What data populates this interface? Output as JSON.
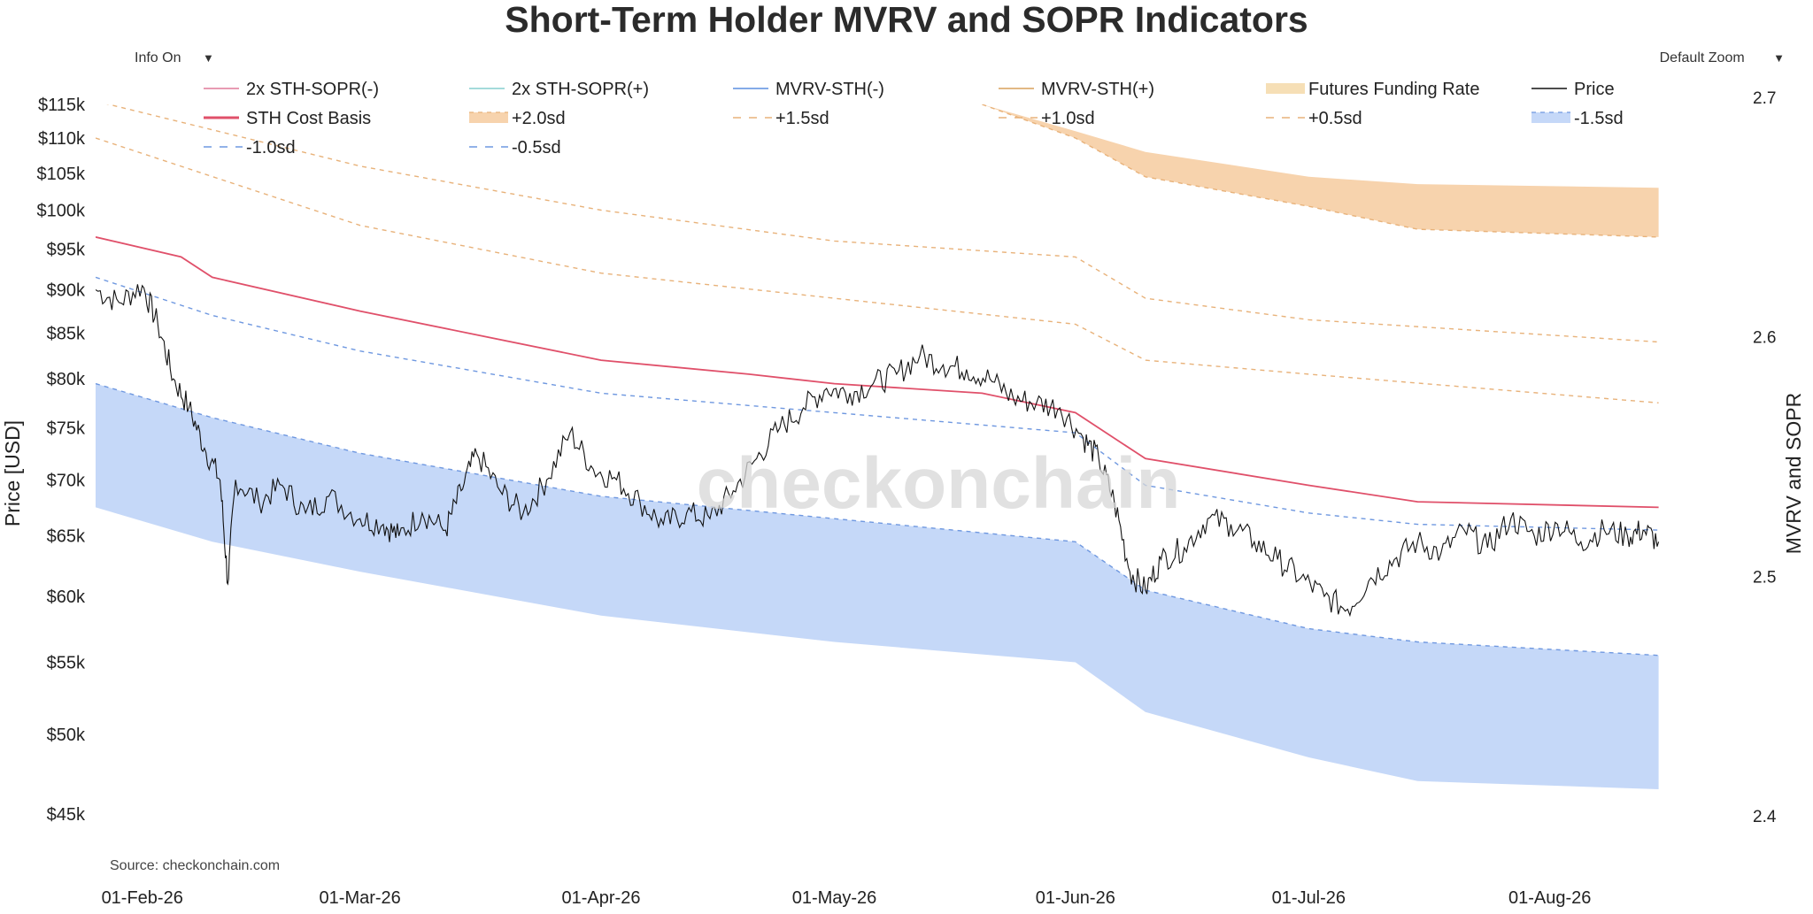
{
  "header": {
    "info_toggle": "Info On",
    "info_caret": "▼",
    "zoom_select": "Default Zoom",
    "zoom_caret": "▼"
  },
  "colors": {
    "price": "#111111",
    "cost_basis": "#e0506a",
    "upper_band_fill": "#f7d3ad",
    "lower_band_fill": "#c5d8f8",
    "upper_dash": "#e8b27a",
    "lower_dash": "#6f98e0",
    "sopr_neg": "#e07a9a",
    "sopr_pos": "#86cfcf",
    "mvrv_neg": "#5b8fe0",
    "mvrv_pos": "#d9a05b",
    "funding": "#f6dfb6"
  },
  "chart_data": {
    "type": "line",
    "title": "Short-Term Holder MVRV and SOPR Indicators",
    "source": "Source: checkonchain.com",
    "watermark": "checkonchain",
    "ylabel": "Price [USD]",
    "y2label": "MVRV and SOPR",
    "yscale": "log",
    "ylim": [
      45000,
      115000
    ],
    "y2lim": [
      2.4,
      2.7
    ],
    "xlim": [
      "2026-01-26",
      "2026-08-18"
    ],
    "yticks": [
      {
        "v": 45000,
        "label": "$45k"
      },
      {
        "v": 50000,
        "label": "$50k"
      },
      {
        "v": 55000,
        "label": "$55k"
      },
      {
        "v": 60000,
        "label": "$60k"
      },
      {
        "v": 65000,
        "label": "$65k"
      },
      {
        "v": 70000,
        "label": "$70k"
      },
      {
        "v": 75000,
        "label": "$75k"
      },
      {
        "v": 80000,
        "label": "$80k"
      },
      {
        "v": 85000,
        "label": "$85k"
      },
      {
        "v": 90000,
        "label": "$90k"
      },
      {
        "v": 95000,
        "label": "$95k"
      },
      {
        "v": 100000,
        "label": "$100k"
      },
      {
        "v": 105000,
        "label": "$105k"
      },
      {
        "v": 110000,
        "label": "$110k"
      },
      {
        "v": 115000,
        "label": "$115k"
      }
    ],
    "y2ticks": [
      {
        "v": 2.4,
        "label": "2.4"
      },
      {
        "v": 2.5,
        "label": "2.5"
      },
      {
        "v": 2.6,
        "label": "2.6"
      },
      {
        "v": 2.7,
        "label": "2.7"
      }
    ],
    "xticks": [
      {
        "v": "2026-02-01",
        "label": "01-Feb-26"
      },
      {
        "v": "2026-03-01",
        "label": "01-Mar-26"
      },
      {
        "v": "2026-04-01",
        "label": "01-Apr-26"
      },
      {
        "v": "2026-05-01",
        "label": "01-May-26"
      },
      {
        "v": "2026-06-01",
        "label": "01-Jun-26"
      },
      {
        "v": "2026-07-01",
        "label": "01-Jul-26"
      },
      {
        "v": "2026-08-01",
        "label": "01-Aug-26"
      }
    ],
    "legend": [
      {
        "label": "2x STH-SOPR(-)",
        "style": "line",
        "color": "#e07a9a"
      },
      {
        "label": "2x STH-SOPR(+)",
        "style": "line",
        "color": "#86cfcf"
      },
      {
        "label": "MVRV-STH(-)",
        "style": "line",
        "color": "#5b8fe0"
      },
      {
        "label": "MVRV-STH(+)",
        "style": "line",
        "color": "#d9a05b"
      },
      {
        "label": "Futures Funding Rate",
        "style": "fill",
        "color": "#f6dfb6"
      },
      {
        "label": "Price",
        "style": "line",
        "color": "#111111"
      },
      {
        "label": "STH Cost Basis",
        "style": "thick",
        "color": "#e0506a"
      },
      {
        "label": "+2.0sd",
        "style": "fill-dash",
        "color": "#f7d3ad"
      },
      {
        "label": "+1.5sd",
        "style": "dash",
        "color": "#e8b27a"
      },
      {
        "label": "+1.0sd",
        "style": "dash",
        "color": "#e8b27a"
      },
      {
        "label": "+0.5sd",
        "style": "dash",
        "color": "#e8b27a"
      },
      {
        "label": "-1.5sd",
        "style": "fill-dash",
        "color": "#c5d8f8"
      },
      {
        "label": "-1.0sd",
        "style": "dash",
        "color": "#6f98e0"
      },
      {
        "label": "-0.5sd",
        "style": "dash",
        "color": "#6f98e0"
      }
    ],
    "series": {
      "price": {
        "name": "Price",
        "points": [
          [
            "2026-01-26",
            90000
          ],
          [
            "2026-01-29",
            88500
          ],
          [
            "2026-02-01",
            90500
          ],
          [
            "2026-02-03",
            86000
          ],
          [
            "2026-02-05",
            80000
          ],
          [
            "2026-02-07",
            77000
          ],
          [
            "2026-02-09",
            73000
          ],
          [
            "2026-02-11",
            70000
          ],
          [
            "2026-02-12",
            61000
          ],
          [
            "2026-02-13",
            70000
          ],
          [
            "2026-02-16",
            68000
          ],
          [
            "2026-02-19",
            69500
          ],
          [
            "2026-02-22",
            67000
          ],
          [
            "2026-02-25",
            68500
          ],
          [
            "2026-03-01",
            66500
          ],
          [
            "2026-03-04",
            66000
          ],
          [
            "2026-03-06",
            65000
          ],
          [
            "2026-03-09",
            67000
          ],
          [
            "2026-03-12",
            65500
          ],
          [
            "2026-03-14",
            69000
          ],
          [
            "2026-03-16",
            72500
          ],
          [
            "2026-03-19",
            69000
          ],
          [
            "2026-03-22",
            67000
          ],
          [
            "2026-03-25",
            70000
          ],
          [
            "2026-03-28",
            74500
          ],
          [
            "2026-03-31",
            71000
          ],
          [
            "2026-04-03",
            70000
          ],
          [
            "2026-04-06",
            68000
          ],
          [
            "2026-04-09",
            66000
          ],
          [
            "2026-04-12",
            67000
          ],
          [
            "2026-04-15",
            66500
          ],
          [
            "2026-04-18",
            69000
          ],
          [
            "2026-04-21",
            72000
          ],
          [
            "2026-04-24",
            75000
          ],
          [
            "2026-04-27",
            77000
          ],
          [
            "2026-04-30",
            79000
          ],
          [
            "2026-05-03",
            78500
          ],
          [
            "2026-05-06",
            79500
          ],
          [
            "2026-05-09",
            80500
          ],
          [
            "2026-05-12",
            82500
          ],
          [
            "2026-05-15",
            81500
          ],
          [
            "2026-05-18",
            81000
          ],
          [
            "2026-05-21",
            80000
          ],
          [
            "2026-05-24",
            78000
          ],
          [
            "2026-05-27",
            77500
          ],
          [
            "2026-05-30",
            77000
          ],
          [
            "2026-06-02",
            74000
          ],
          [
            "2026-06-04",
            72000
          ],
          [
            "2026-06-06",
            68000
          ],
          [
            "2026-06-08",
            62000
          ],
          [
            "2026-06-10",
            60500
          ],
          [
            "2026-06-12",
            63000
          ],
          [
            "2026-06-15",
            64000
          ],
          [
            "2026-06-18",
            66500
          ],
          [
            "2026-06-21",
            66000
          ],
          [
            "2026-06-24",
            64500
          ],
          [
            "2026-06-27",
            63000
          ],
          [
            "2026-06-30",
            61500
          ],
          [
            "2026-07-03",
            60000
          ],
          [
            "2026-07-06",
            59000
          ],
          [
            "2026-07-09",
            61500
          ],
          [
            "2026-07-12",
            63000
          ],
          [
            "2026-07-15",
            64500
          ],
          [
            "2026-07-18",
            63500
          ],
          [
            "2026-07-21",
            65500
          ],
          [
            "2026-07-24",
            64000
          ],
          [
            "2026-07-27",
            66500
          ],
          [
            "2026-07-30",
            65000
          ],
          [
            "2026-08-02",
            66000
          ],
          [
            "2026-08-05",
            64500
          ],
          [
            "2026-08-08",
            65500
          ],
          [
            "2026-08-11",
            65000
          ],
          [
            "2026-08-13",
            65500
          ],
          [
            "2026-08-15",
            64500
          ]
        ]
      },
      "sth_cost_basis": {
        "name": "STH Cost Basis",
        "points": [
          [
            "2026-01-26",
            96500
          ],
          [
            "2026-02-06",
            94000
          ],
          [
            "2026-02-10",
            91500
          ],
          [
            "2026-03-01",
            87500
          ],
          [
            "2026-04-01",
            82000
          ],
          [
            "2026-04-20",
            80500
          ],
          [
            "2026-05-01",
            79500
          ],
          [
            "2026-05-20",
            78500
          ],
          [
            "2026-06-01",
            76500
          ],
          [
            "2026-06-10",
            72000
          ],
          [
            "2026-07-01",
            69500
          ],
          [
            "2026-07-15",
            68000
          ],
          [
            "2026-08-15",
            67500
          ]
        ]
      },
      "plus_2_0sd": {
        "name": "+2.0sd",
        "points": [
          [
            "2026-05-20",
            115000
          ],
          [
            "2026-06-01",
            111000
          ],
          [
            "2026-06-10",
            108000
          ],
          [
            "2026-07-01",
            104500
          ],
          [
            "2026-07-15",
            103500
          ],
          [
            "2026-08-15",
            103000
          ]
        ]
      },
      "plus_1_5sd": {
        "name": "+1.5sd",
        "points": [
          [
            "2026-05-20",
            115000
          ],
          [
            "2026-06-01",
            110000
          ],
          [
            "2026-06-10",
            104500
          ],
          [
            "2026-07-01",
            100500
          ],
          [
            "2026-07-15",
            97500
          ],
          [
            "2026-08-15",
            96500
          ]
        ]
      },
      "plus_1_0sd": {
        "name": "+1.0sd",
        "points": [
          [
            "2026-01-26",
            115500
          ],
          [
            "2026-03-01",
            106000
          ],
          [
            "2026-04-01",
            100000
          ],
          [
            "2026-05-01",
            96000
          ],
          [
            "2026-06-01",
            94000
          ],
          [
            "2026-06-10",
            89000
          ],
          [
            "2026-07-01",
            86500
          ],
          [
            "2026-08-15",
            84000
          ]
        ]
      },
      "plus_0_5sd": {
        "name": "+0.5sd",
        "points": [
          [
            "2026-01-26",
            110000
          ],
          [
            "2026-03-01",
            98000
          ],
          [
            "2026-04-01",
            92000
          ],
          [
            "2026-05-01",
            89000
          ],
          [
            "2026-06-01",
            86000
          ],
          [
            "2026-06-10",
            82000
          ],
          [
            "2026-07-01",
            80500
          ],
          [
            "2026-08-15",
            77500
          ]
        ]
      },
      "minus_0_5sd": {
        "name": "-0.5sd",
        "points": [
          [
            "2026-01-26",
            91500
          ],
          [
            "2026-02-10",
            87000
          ],
          [
            "2026-03-01",
            83000
          ],
          [
            "2026-04-01",
            78500
          ],
          [
            "2026-05-01",
            76500
          ],
          [
            "2026-06-01",
            74500
          ],
          [
            "2026-06-10",
            69500
          ],
          [
            "2026-07-01",
            67000
          ],
          [
            "2026-07-15",
            66000
          ],
          [
            "2026-08-15",
            65500
          ]
        ]
      },
      "minus_1_0sd": {
        "name": "-1.0sd",
        "points": [
          [
            "2026-01-26",
            79500
          ],
          [
            "2026-02-10",
            76000
          ],
          [
            "2026-03-01",
            72500
          ],
          [
            "2026-04-01",
            68500
          ],
          [
            "2026-05-01",
            66500
          ],
          [
            "2026-06-01",
            64500
          ],
          [
            "2026-06-10",
            60500
          ],
          [
            "2026-07-01",
            57500
          ],
          [
            "2026-07-15",
            56500
          ],
          [
            "2026-08-15",
            55500
          ]
        ]
      },
      "minus_1_5sd": {
        "name": "-1.5sd",
        "points": [
          [
            "2026-01-26",
            67500
          ],
          [
            "2026-02-10",
            64500
          ],
          [
            "2026-03-01",
            62000
          ],
          [
            "2026-04-01",
            58500
          ],
          [
            "2026-05-01",
            56500
          ],
          [
            "2026-06-01",
            55000
          ],
          [
            "2026-06-10",
            51500
          ],
          [
            "2026-07-01",
            48500
          ],
          [
            "2026-07-15",
            47000
          ],
          [
            "2026-08-15",
            46500
          ]
        ]
      }
    }
  }
}
